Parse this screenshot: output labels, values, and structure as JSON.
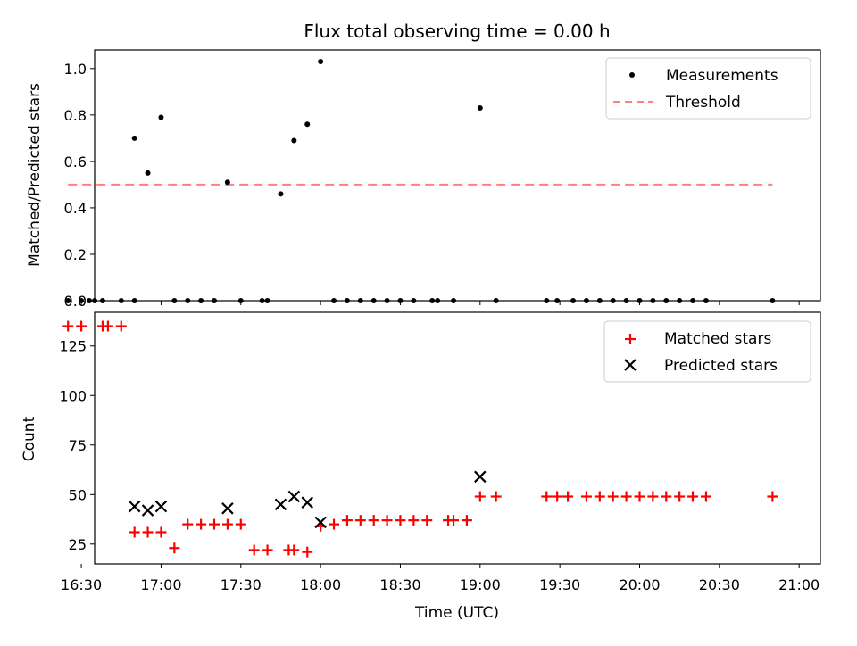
{
  "chart_data": [
    {
      "type": "scatter",
      "title": "Flux total observing time = 0.00 h",
      "ylabel": "Matched/Predicted stars",
      "xlabel": "",
      "xlim_minutes": [
        995,
        1268
      ],
      "ylim": [
        0,
        1.08
      ],
      "yticks": [
        0.0,
        0.2,
        0.4,
        0.6,
        0.8,
        1.0
      ],
      "ytick_labels": [
        "0.0",
        "0.2",
        "0.4",
        "0.6",
        "0.8",
        "1.0"
      ],
      "legend_position": "top-right",
      "threshold": {
        "label": "Threshold",
        "value": 0.5,
        "x_range": [
          985,
          1250
        ],
        "color": "#ff7f7f"
      },
      "measurements": {
        "label": "Measurements",
        "color": "#000000",
        "points": [
          [
            985,
            0
          ],
          [
            990,
            0
          ],
          [
            993,
            0
          ],
          [
            995,
            0
          ],
          [
            998,
            0
          ],
          [
            1010,
            0.7
          ],
          [
            1015,
            0.55
          ],
          [
            1020,
            0.79
          ],
          [
            1005,
            0
          ],
          [
            1010,
            0
          ],
          [
            1025,
            0
          ],
          [
            1030,
            0
          ],
          [
            1035,
            0
          ],
          [
            1040,
            0
          ],
          [
            1045,
            0.51
          ],
          [
            1050,
            0
          ],
          [
            1058,
            0
          ],
          [
            1060,
            0
          ],
          [
            1065,
            0.46
          ],
          [
            1070,
            0.69
          ],
          [
            1075,
            0.76
          ],
          [
            1080,
            1.03
          ],
          [
            1085,
            0
          ],
          [
            1090,
            0
          ],
          [
            1095,
            0
          ],
          [
            1100,
            0
          ],
          [
            1105,
            0
          ],
          [
            1110,
            0
          ],
          [
            1115,
            0
          ],
          [
            1122,
            0
          ],
          [
            1124,
            0
          ],
          [
            1130,
            0
          ],
          [
            1140,
            0.83
          ],
          [
            1146,
            0
          ],
          [
            1165,
            0
          ],
          [
            1169,
            0
          ],
          [
            1175,
            0
          ],
          [
            1180,
            0
          ],
          [
            1185,
            0
          ],
          [
            1190,
            0
          ],
          [
            1195,
            0
          ],
          [
            1200,
            0
          ],
          [
            1205,
            0
          ],
          [
            1210,
            0
          ],
          [
            1215,
            0
          ],
          [
            1220,
            0
          ],
          [
            1225,
            0
          ],
          [
            1250,
            0
          ]
        ]
      }
    },
    {
      "type": "scatter",
      "title": "",
      "ylabel": "Count",
      "xlabel": "Time (UTC)",
      "xlim_minutes": [
        995,
        1268
      ],
      "ylim": [
        15,
        142
      ],
      "yticks": [
        25,
        50,
        75,
        100,
        125
      ],
      "ytick_labels": [
        "25",
        "50",
        "75",
        "100",
        "125"
      ],
      "legend_position": "top-right",
      "matched": {
        "label": "Matched stars",
        "color": "#ff0000",
        "points": [
          [
            985,
            135
          ],
          [
            990,
            135
          ],
          [
            998,
            135
          ],
          [
            1000,
            135
          ],
          [
            1005,
            135
          ],
          [
            1010,
            31
          ],
          [
            1015,
            31
          ],
          [
            1020,
            31
          ],
          [
            1025,
            23
          ],
          [
            1030,
            35
          ],
          [
            1035,
            35
          ],
          [
            1040,
            35
          ],
          [
            1045,
            35
          ],
          [
            1050,
            35
          ],
          [
            1055,
            22
          ],
          [
            1060,
            22
          ],
          [
            1068,
            22
          ],
          [
            1070,
            22
          ],
          [
            1075,
            21
          ],
          [
            1080,
            34
          ],
          [
            1085,
            35
          ],
          [
            1090,
            37
          ],
          [
            1095,
            37
          ],
          [
            1100,
            37
          ],
          [
            1105,
            37
          ],
          [
            1110,
            37
          ],
          [
            1115,
            37
          ],
          [
            1120,
            37
          ],
          [
            1128,
            37
          ],
          [
            1130,
            37
          ],
          [
            1135,
            37
          ],
          [
            1140,
            49
          ],
          [
            1146,
            49
          ],
          [
            1165,
            49
          ],
          [
            1169,
            49
          ],
          [
            1173,
            49
          ],
          [
            1180,
            49
          ],
          [
            1185,
            49
          ],
          [
            1190,
            49
          ],
          [
            1195,
            49
          ],
          [
            1200,
            49
          ],
          [
            1205,
            49
          ],
          [
            1210,
            49
          ],
          [
            1215,
            49
          ],
          [
            1220,
            49
          ],
          [
            1225,
            49
          ],
          [
            1250,
            49
          ]
        ]
      },
      "predicted": {
        "label": "Predicted stars",
        "color": "#000000",
        "points": [
          [
            1010,
            44
          ],
          [
            1015,
            42
          ],
          [
            1020,
            44
          ],
          [
            1045,
            43
          ],
          [
            1065,
            45
          ],
          [
            1070,
            49
          ],
          [
            1075,
            46
          ],
          [
            1080,
            36
          ],
          [
            1140,
            59
          ]
        ]
      }
    }
  ],
  "x_axis": {
    "tick_minutes": [
      990,
      1020,
      1050,
      1080,
      1110,
      1140,
      1170,
      1200,
      1230,
      1260
    ],
    "tick_labels": [
      "16:30",
      "17:00",
      "17:30",
      "18:00",
      "18:30",
      "19:00",
      "19:30",
      "20:00",
      "20:30",
      "21:00"
    ]
  }
}
